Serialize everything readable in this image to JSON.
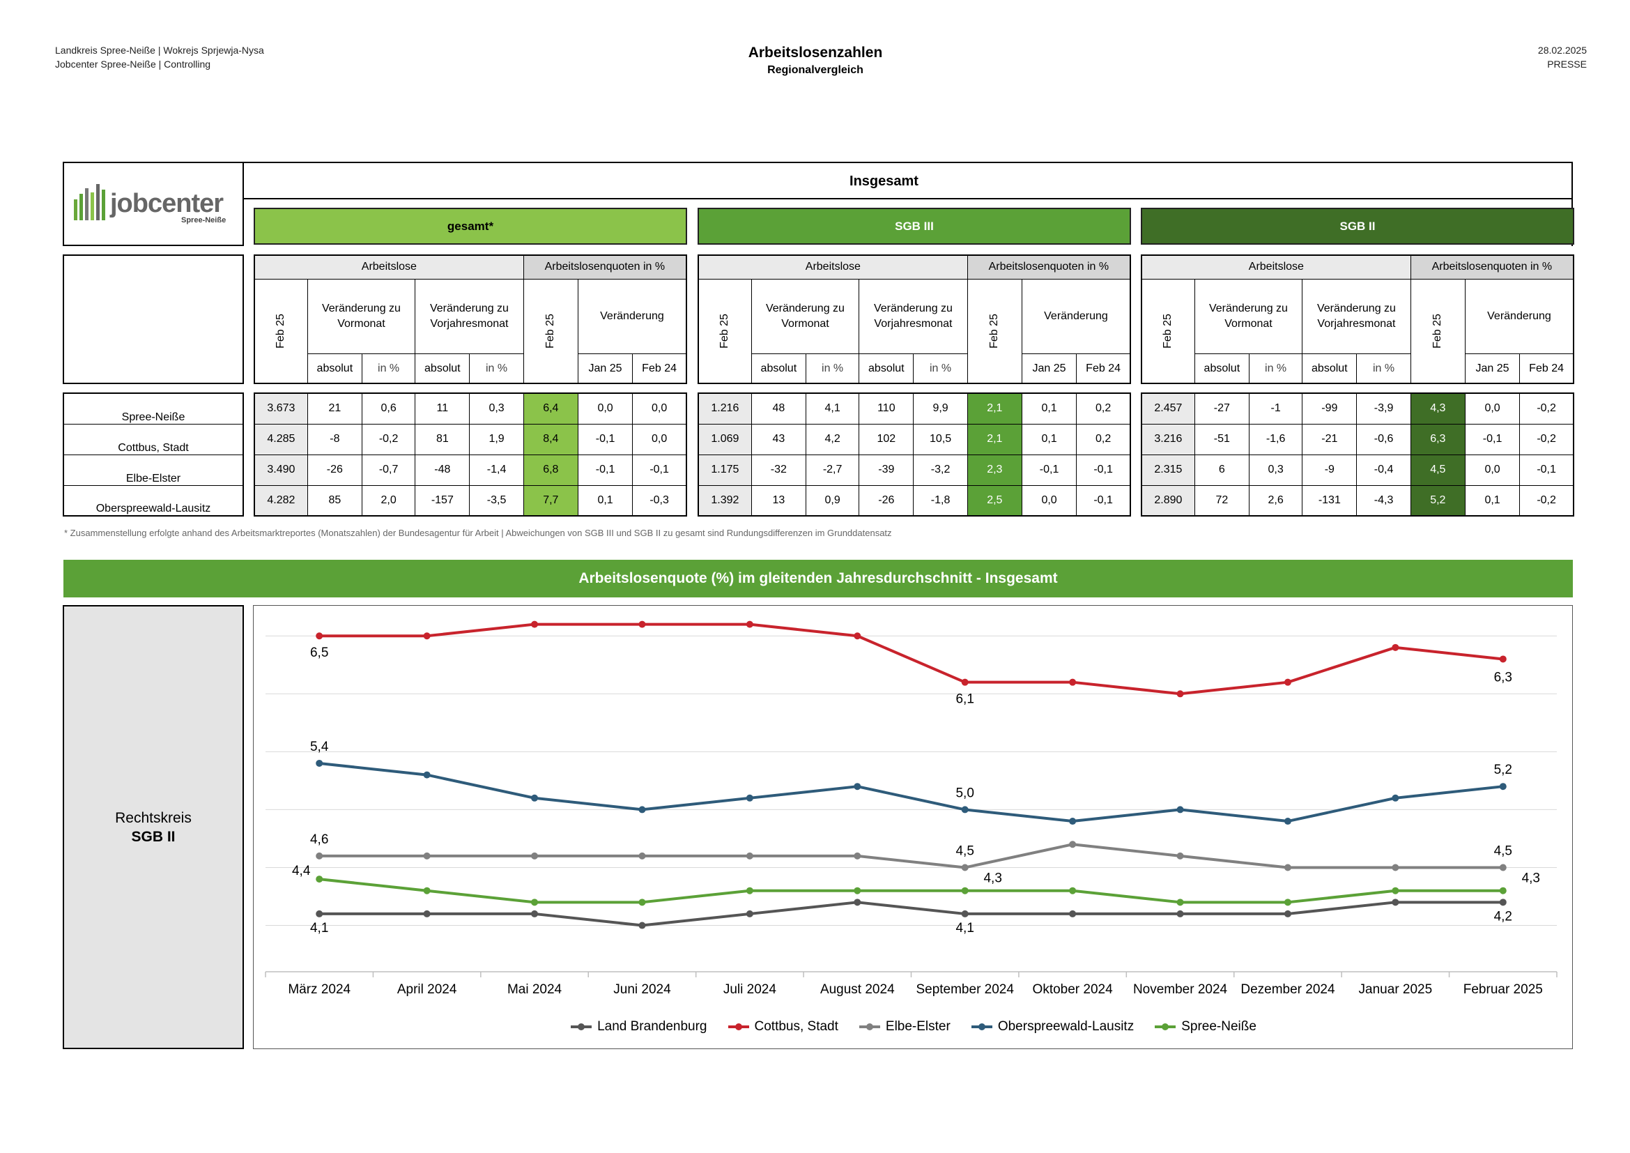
{
  "header": {
    "left_line1": "Landkreis Spree-Neiße | Wokrejs Sprjewja-Nysa",
    "left_line2": "Jobcenter Spree-Neiße | Controlling",
    "title": "Arbeitslosenzahlen",
    "subtitle": "Regionalvergleich",
    "date": "28.02.2025",
    "tag": "PRESSE"
  },
  "logo": {
    "word": "jobcenter",
    "sub": "Spree-Neiße"
  },
  "table": {
    "title": "Insgesamt",
    "groups": [
      {
        "label": "gesamt*",
        "color": "#8bc34a"
      },
      {
        "label": "SGB III",
        "color": "#5ba137"
      },
      {
        "label": "SGB II",
        "color": "#3f6e26"
      }
    ],
    "col_headers": {
      "arbeitslose": "Arbeitslose",
      "quoten": "Arbeitslosenquoten in %",
      "month": "Feb 25",
      "vormonat": "Veränderung zu Vormonat",
      "vorjahr": "Veränderung zu Vorjahresmonat",
      "veraenderung": "Veränderung",
      "absolut": "absolut",
      "in_pct": "in %",
      "jan25": "Jan 25",
      "feb24": "Feb 24"
    },
    "rows": [
      {
        "name": "Spree-Neiße",
        "values": [
          [
            "3.673",
            "21",
            "0,6",
            "11",
            "0,3",
            "6,4",
            "0,0",
            "0,0"
          ],
          [
            "1.216",
            "48",
            "4,1",
            "110",
            "9,9",
            "2,1",
            "0,1",
            "0,2"
          ],
          [
            "2.457",
            "-27",
            "-1",
            "-99",
            "-3,9",
            "4,3",
            "0,0",
            "-0,2"
          ]
        ]
      },
      {
        "name": "Cottbus, Stadt",
        "values": [
          [
            "4.285",
            "-8",
            "-0,2",
            "81",
            "1,9",
            "8,4",
            "-0,1",
            "0,0"
          ],
          [
            "1.069",
            "43",
            "4,2",
            "102",
            "10,5",
            "2,1",
            "0,1",
            "0,2"
          ],
          [
            "3.216",
            "-51",
            "-1,6",
            "-21",
            "-0,6",
            "6,3",
            "-0,1",
            "-0,2"
          ]
        ]
      },
      {
        "name": "Elbe-Elster",
        "values": [
          [
            "3.490",
            "-26",
            "-0,7",
            "-48",
            "-1,4",
            "6,8",
            "-0,1",
            "-0,1"
          ],
          [
            "1.175",
            "-32",
            "-2,7",
            "-39",
            "-3,2",
            "2,3",
            "-0,1",
            "-0,1"
          ],
          [
            "2.315",
            "6",
            "0,3",
            "-9",
            "-0,4",
            "4,5",
            "0,0",
            "-0,1"
          ]
        ]
      },
      {
        "name": "Oberspreewald-Lausitz",
        "values": [
          [
            "4.282",
            "85",
            "2,0",
            "-157",
            "-3,5",
            "7,7",
            "0,1",
            "-0,3"
          ],
          [
            "1.392",
            "13",
            "0,9",
            "-26",
            "-1,8",
            "2,5",
            "0,0",
            "-0,1"
          ],
          [
            "2.890",
            "72",
            "2,6",
            "-131",
            "-4,3",
            "5,2",
            "0,1",
            "-0,2"
          ]
        ]
      }
    ],
    "quote_colors": [
      "#8bc34a",
      "#5ba137",
      "#3f6e26"
    ],
    "footnote": "* Zusammenstellung erfolgte anhand des Arbeitsmarktreportes (Monatszahlen) der Bundesagentur für Arbeit | Abweichungen von SGB III und SGB II zu gesamt sind Rundungsdifferenzen im Grunddatensatz"
  },
  "chart_title": "Arbeitslosenquote (%) im gleitenden Jahresdurchschnitt - Insgesamt",
  "side_label": {
    "line1": "Rechtskreis",
    "line2": "SGB II"
  },
  "chart_data": {
    "type": "line",
    "title": "Arbeitslosenquote (%) im gleitenden Jahresdurchschnitt - Insgesamt",
    "categories": [
      "März 2024",
      "April 2024",
      "Mai 2024",
      "Juni 2024",
      "Juli 2024",
      "August 2024",
      "September 2024",
      "Oktober 2024",
      "November 2024",
      "Dezember 2024",
      "Januar 2025",
      "Februar 2025"
    ],
    "ylim": [
      3.6,
      6.7
    ],
    "grid": true,
    "legend": "bottom",
    "series": [
      {
        "name": "Land Brandenburg",
        "color": "#555555",
        "values": [
          4.1,
          4.1,
          4.1,
          4.0,
          4.1,
          4.2,
          4.1,
          4.1,
          4.1,
          4.1,
          4.2,
          4.2
        ]
      },
      {
        "name": "Cottbus, Stadt",
        "color": "#c8232c",
        "values": [
          6.5,
          6.5,
          6.6,
          6.6,
          6.6,
          6.5,
          6.1,
          6.1,
          6.0,
          6.1,
          6.4,
          6.3
        ]
      },
      {
        "name": "Elbe-Elster",
        "color": "#808080",
        "values": [
          4.6,
          4.6,
          4.6,
          4.6,
          4.6,
          4.6,
          4.5,
          4.7,
          4.6,
          4.5,
          4.5,
          4.5
        ]
      },
      {
        "name": "Oberspreewald-Lausitz",
        "color": "#2e5b7a",
        "values": [
          5.4,
          5.3,
          5.1,
          5.0,
          5.1,
          5.2,
          5.0,
          4.9,
          5.0,
          4.9,
          5.1,
          5.2
        ]
      },
      {
        "name": "Spree-Neiße",
        "color": "#5ba137",
        "values": [
          4.4,
          4.3,
          4.2,
          4.2,
          4.3,
          4.3,
          4.3,
          4.3,
          4.2,
          4.2,
          4.3,
          4.3
        ]
      }
    ],
    "data_labels": [
      {
        "series": 1,
        "index": 0,
        "text": "6,5"
      },
      {
        "series": 1,
        "index": 6,
        "text": "6,1"
      },
      {
        "series": 1,
        "index": 11,
        "text": "6,3"
      },
      {
        "series": 3,
        "index": 0,
        "text": "5,4"
      },
      {
        "series": 3,
        "index": 6,
        "text": "5,0"
      },
      {
        "series": 3,
        "index": 11,
        "text": "5,2"
      },
      {
        "series": 2,
        "index": 0,
        "text": "4,6"
      },
      {
        "series": 2,
        "index": 6,
        "text": "4,5"
      },
      {
        "series": 2,
        "index": 11,
        "text": "4,5"
      },
      {
        "series": 4,
        "index": 0,
        "text": "4,4"
      },
      {
        "series": 4,
        "index": 6,
        "text": "4,3"
      },
      {
        "series": 4,
        "index": 11,
        "text": "4,3"
      },
      {
        "series": 0,
        "index": 0,
        "text": "4,1"
      },
      {
        "series": 0,
        "index": 6,
        "text": "4,1"
      },
      {
        "series": 0,
        "index": 11,
        "text": "4,2"
      }
    ]
  }
}
